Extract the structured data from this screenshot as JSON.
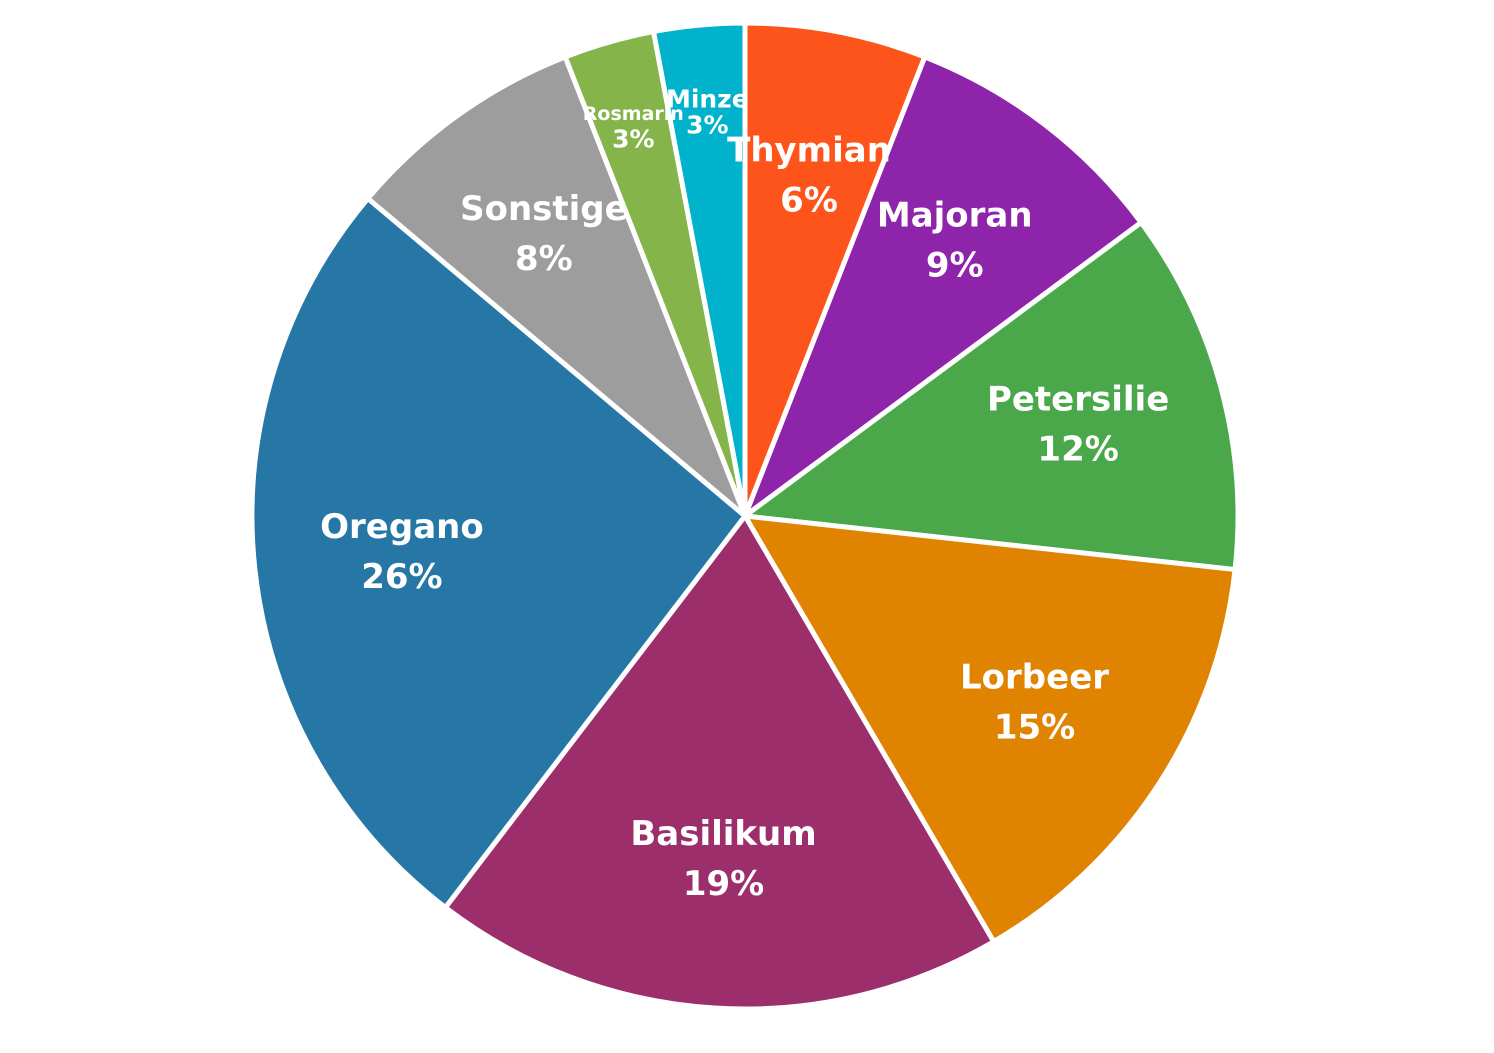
{
  "chart_data": {
    "type": "pie",
    "categories": [
      "Thymian",
      "Majoran",
      "Petersilie",
      "Lorbeer",
      "Basilikum",
      "Oregano",
      "Sonstige",
      "Rosmarin",
      "Minze"
    ],
    "values": [
      6,
      9,
      12,
      15,
      19,
      26,
      8,
      3,
      3
    ],
    "value_labels": [
      "6%",
      "9%",
      "12%",
      "15%",
      "19%",
      "26%",
      "8%",
      "3%",
      "3%"
    ],
    "colors": [
      "#fc541a",
      "#8e24aa",
      "#4aa84a",
      "#e08300",
      "#9c2f6b",
      "#2677a6",
      "#9c9d9c",
      "#84b44a",
      "#00b2cc"
    ]
  }
}
